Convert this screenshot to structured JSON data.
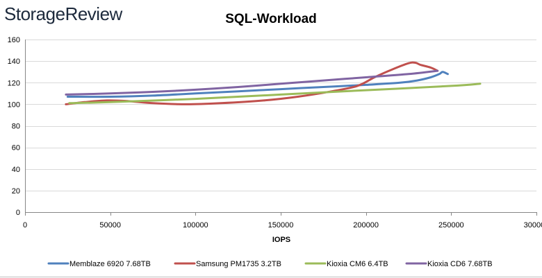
{
  "brand": {
    "logo_text": "StorageReview"
  },
  "chart_data": {
    "type": "line",
    "title": "SQL-Workload",
    "xlabel": "IOPS",
    "ylabel": "",
    "xlim": [
      0,
      300000
    ],
    "ylim": [
      0,
      160
    ],
    "x_ticks": [
      0,
      50000,
      100000,
      150000,
      200000,
      250000,
      300000
    ],
    "x_tick_labels": [
      "0",
      "50000",
      "100000",
      "150000",
      "200000",
      "250000",
      "300000"
    ],
    "y_ticks": [
      0,
      20,
      40,
      60,
      80,
      100,
      120,
      140,
      160
    ],
    "y_tick_labels": [
      "0",
      "20",
      "40",
      "60",
      "80",
      "100",
      "120",
      "140",
      "160"
    ],
    "grid": "horizontal",
    "legend_position": "bottom",
    "series": [
      {
        "name": "Memblaze 6920 7.68TB",
        "color": "#4f81bd",
        "x": [
          25000,
          50000,
          75000,
          100000,
          125000,
          150000,
          175000,
          200000,
          220000,
          230000,
          238000,
          243000,
          245000,
          248000
        ],
        "y": [
          107,
          107,
          108,
          110,
          112,
          114,
          116,
          118,
          120,
          122,
          125,
          128,
          130,
          128
        ]
      },
      {
        "name": "Samsung PM1735 3.2TB",
        "color": "#c0504d",
        "x": [
          24000,
          35000,
          48000,
          60000,
          75000,
          95000,
          115000,
          140000,
          160000,
          180000,
          195000,
          205000,
          215000,
          225000,
          229000,
          232000,
          238000,
          242000
        ],
        "y": [
          100,
          102,
          103.5,
          103,
          101,
          100,
          101,
          103.5,
          107,
          112,
          117,
          125,
          132,
          138,
          138.5,
          136.5,
          134,
          131
        ]
      },
      {
        "name": "Kioxia CM6 6.4TB",
        "color": "#9bbb59",
        "x": [
          26000,
          50000,
          100000,
          150000,
          200000,
          250000,
          267000
        ],
        "y": [
          101,
          102,
          105,
          109,
          113,
          117,
          119
        ]
      },
      {
        "name": "Kioxia CD6 7.68TB",
        "color": "#8064a2",
        "x": [
          24000,
          50000,
          75000,
          100000,
          125000,
          150000,
          175000,
          200000,
          225000,
          242000
        ],
        "y": [
          109,
          110,
          111.5,
          113.5,
          116,
          119,
          122,
          125,
          128,
          131
        ]
      }
    ]
  }
}
